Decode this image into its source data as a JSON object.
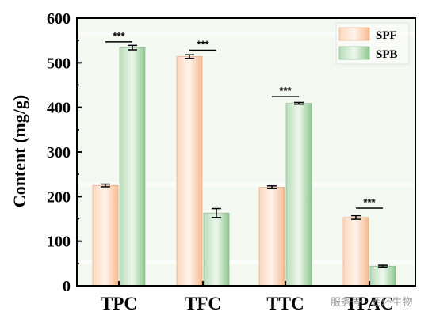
{
  "chart_data": {
    "type": "bar",
    "categories": [
      "TPC",
      "TFC",
      "TTC",
      "TPAC"
    ],
    "series": [
      {
        "name": "SPF",
        "values": [
          225,
          514,
          221,
          153
        ],
        "errors": [
          3,
          4,
          3,
          4
        ],
        "color": "#f9c7a6"
      },
      {
        "name": "SPB",
        "values": [
          534,
          163,
          409,
          44
        ],
        "errors": [
          5,
          10,
          2,
          2
        ],
        "color": "#a6d3a6"
      }
    ],
    "significance": [
      {
        "category": "TPC",
        "label": "***",
        "level": 547
      },
      {
        "category": "TFC",
        "label": "***",
        "level": 528
      },
      {
        "category": "TTC",
        "label": "***",
        "level": 424
      },
      {
        "category": "TPAC",
        "label": "***",
        "level": 174
      }
    ],
    "ylabel": "Content (mg/g)",
    "xlabel": "",
    "ylim": [
      0,
      600
    ],
    "yticks": [
      0,
      100,
      200,
      300,
      400,
      500,
      600
    ],
    "legend_position": "top-right",
    "grid": false,
    "background_color": "#f3f8f1"
  },
  "watermark": {
    "text": "服务号 · 西环生物"
  }
}
